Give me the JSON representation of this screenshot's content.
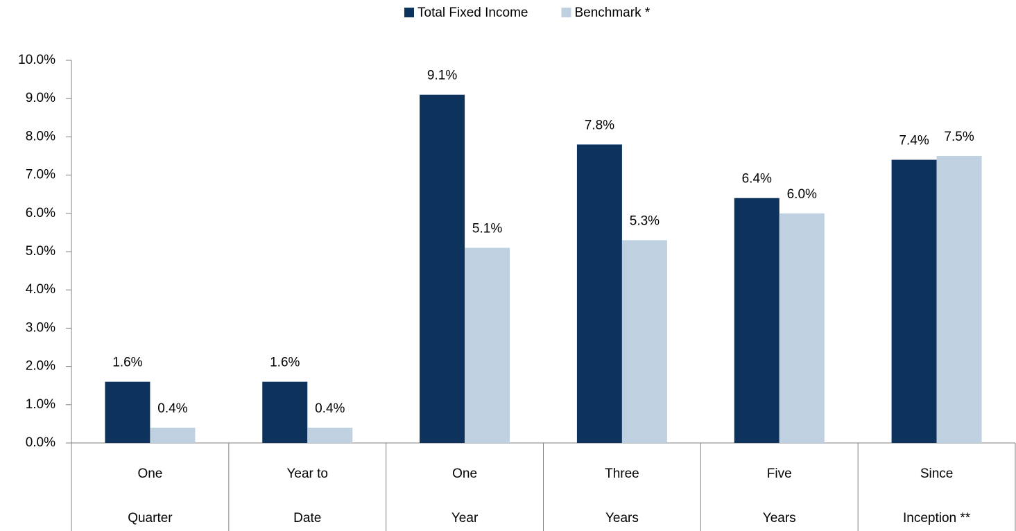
{
  "chart_data": {
    "type": "bar",
    "categories": [
      [
        "One",
        "Quarter"
      ],
      [
        "Year to",
        "Date"
      ],
      [
        "One",
        "Year"
      ],
      [
        "Three",
        "Years"
      ],
      [
        "Five",
        "Years"
      ],
      [
        "Since",
        "Inception **"
      ]
    ],
    "series": [
      {
        "name": "Total Fixed Income",
        "color": "#0d335d",
        "values": [
          1.6,
          1.6,
          9.1,
          7.8,
          6.4,
          7.4
        ],
        "value_labels": [
          "1.6%",
          "1.6%",
          "9.1%",
          "7.8%",
          "6.4%",
          "7.4%"
        ]
      },
      {
        "name": "Benchmark *",
        "color": "#bfd0e0",
        "values": [
          0.4,
          0.4,
          5.1,
          5.3,
          6.0,
          7.5
        ],
        "value_labels": [
          "0.4%",
          "0.4%",
          "5.1%",
          "5.3%",
          "6.0%",
          "7.5%"
        ]
      }
    ],
    "ylim": [
      0,
      10
    ],
    "yticks": [
      {
        "value": 0,
        "label": "0.0%"
      },
      {
        "value": 1,
        "label": "1.0%"
      },
      {
        "value": 2,
        "label": "2.0%"
      },
      {
        "value": 3,
        "label": "3.0%"
      },
      {
        "value": 4,
        "label": "4.0%"
      },
      {
        "value": 5,
        "label": "5.0%"
      },
      {
        "value": 6,
        "label": "6.0%"
      },
      {
        "value": 7,
        "label": "7.0%"
      },
      {
        "value": 8,
        "label": "8.0%"
      },
      {
        "value": 9,
        "label": "9.0%"
      },
      {
        "value": 10,
        "label": "10.0%"
      }
    ],
    "legend": "top"
  }
}
